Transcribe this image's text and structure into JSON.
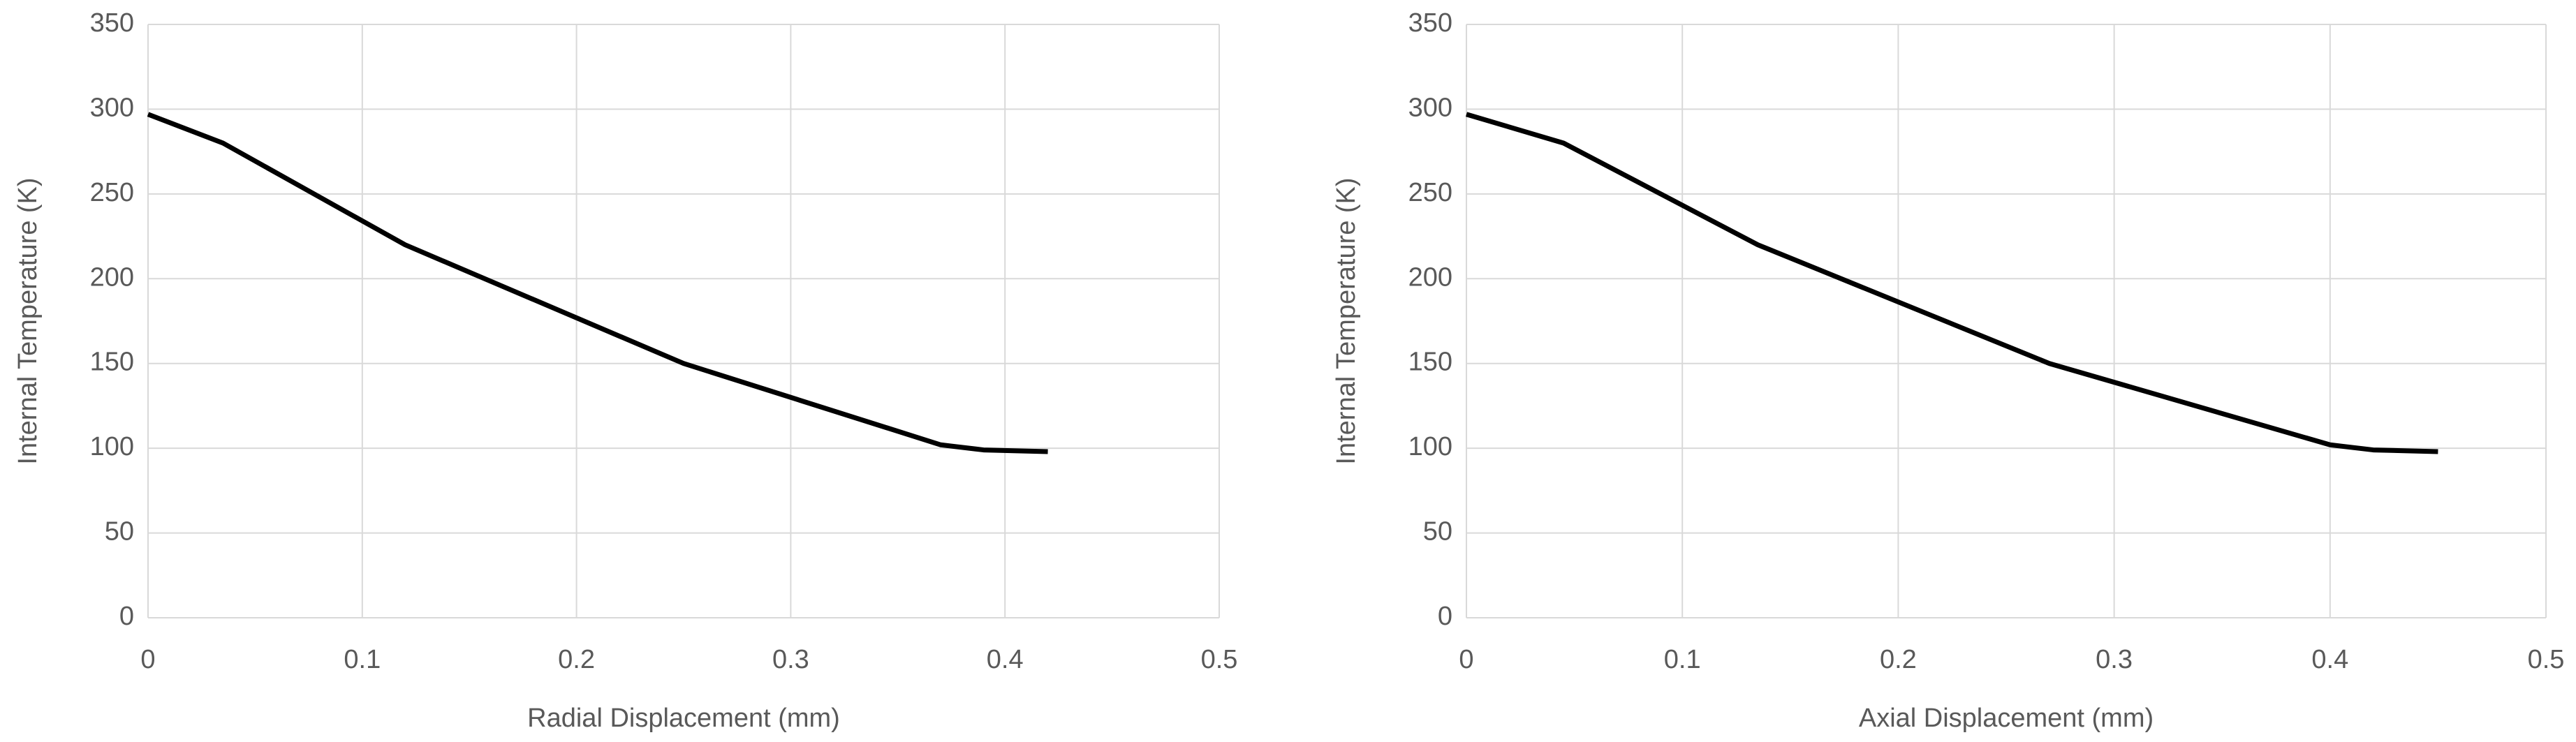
{
  "chart_data": [
    {
      "type": "line",
      "x_label": "Radial Displacement (mm)",
      "y_label": "Internal Temperature (K)",
      "x": [
        0,
        0.035,
        0.12,
        0.25,
        0.37,
        0.39,
        0.42
      ],
      "values": [
        297,
        280,
        220,
        150,
        102,
        99,
        98
      ],
      "color": "#000000",
      "xlim": [
        0,
        0.5
      ],
      "xticks": [
        0,
        0.1,
        0.2,
        0.3,
        0.4,
        0.5
      ],
      "ylim": [
        0,
        350
      ],
      "yticks": [
        0,
        50,
        100,
        150,
        200,
        250,
        300,
        350
      ],
      "grid": true
    },
    {
      "type": "line",
      "x_label": "Axial Displacement (mm)",
      "y_label": "Internal Temperature (K)",
      "x": [
        0,
        0.045,
        0.135,
        0.27,
        0.4,
        0.42,
        0.45
      ],
      "values": [
        297,
        280,
        220,
        150,
        102,
        99,
        98
      ],
      "color": "#000000",
      "xlim": [
        0,
        0.5
      ],
      "xticks": [
        0,
        0.1,
        0.2,
        0.3,
        0.4,
        0.5
      ],
      "ylim": [
        0,
        350
      ],
      "yticks": [
        0,
        50,
        100,
        150,
        200,
        250,
        300,
        350
      ],
      "grid": true
    }
  ]
}
